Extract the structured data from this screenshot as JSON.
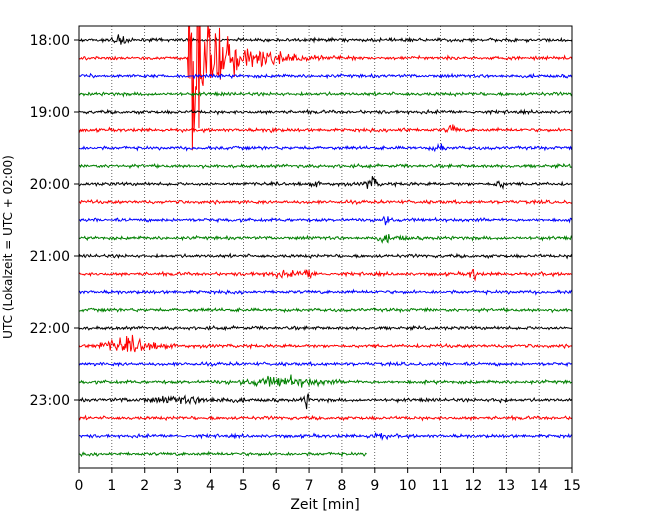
{
  "chart_data": {
    "type": "line",
    "title": "",
    "xlabel": "Zeit  [min]",
    "ylabel": "UTC (Lokalzeit = UTC + 02:00)",
    "xlim": [
      0,
      15
    ],
    "x_ticks": [
      "0",
      "1",
      "2",
      "3",
      "4",
      "5",
      "6",
      "7",
      "8",
      "9",
      "10",
      "11",
      "12",
      "13",
      "14",
      "15"
    ],
    "y_tick_labels": [
      "18:00",
      "19:00",
      "20:00",
      "21:00",
      "22:00",
      "23:00"
    ],
    "grid": "vertical dotted",
    "color_cycle": [
      "#000000",
      "#ff0000",
      "#0000ff",
      "#008000"
    ],
    "trace_interval_minutes": 15,
    "traces": [
      {
        "start": "18:00",
        "end_min": 15
      },
      {
        "start": "18:15",
        "end_min": 15
      },
      {
        "start": "18:30",
        "end_min": 15
      },
      {
        "start": "18:45",
        "end_min": 15
      },
      {
        "start": "19:00",
        "end_min": 15
      },
      {
        "start": "19:15",
        "end_min": 15
      },
      {
        "start": "19:30",
        "end_min": 15
      },
      {
        "start": "19:45",
        "end_min": 15
      },
      {
        "start": "20:00",
        "end_min": 15
      },
      {
        "start": "20:15",
        "end_min": 15
      },
      {
        "start": "20:30",
        "end_min": 15
      },
      {
        "start": "20:45",
        "end_min": 15
      },
      {
        "start": "21:00",
        "end_min": 15
      },
      {
        "start": "21:15",
        "end_min": 15
      },
      {
        "start": "21:30",
        "end_min": 15
      },
      {
        "start": "21:45",
        "end_min": 15
      },
      {
        "start": "22:00",
        "end_min": 15
      },
      {
        "start": "22:15",
        "end_min": 15
      },
      {
        "start": "22:30",
        "end_min": 15
      },
      {
        "start": "22:45",
        "end_min": 15
      },
      {
        "start": "23:00",
        "end_min": 15
      },
      {
        "start": "23:15",
        "end_min": 15
      },
      {
        "start": "23:30",
        "end_min": 15
      },
      {
        "start": "23:45",
        "end_min": 8.75
      }
    ],
    "events": [
      {
        "trace": 0,
        "x": 1.25,
        "amp": 0.9,
        "dur": 0.25
      },
      {
        "trace": 1,
        "x": 3.3,
        "amp": 15,
        "dur": 2.2,
        "type": "quake"
      },
      {
        "trace": 1,
        "x": 6.5,
        "amp": 0.3,
        "dur": 2.0
      },
      {
        "trace": 5,
        "x": 5.9,
        "amp": 0.4,
        "dur": 0.1
      },
      {
        "trace": 5,
        "x": 9.9,
        "amp": 0.5,
        "dur": 0.1
      },
      {
        "trace": 5,
        "x": 11.35,
        "amp": 0.8,
        "dur": 0.2
      },
      {
        "trace": 6,
        "x": 10.95,
        "amp": 0.7,
        "dur": 0.2
      },
      {
        "trace": 8,
        "x": 7.2,
        "amp": 0.3,
        "dur": 0.1
      },
      {
        "trace": 8,
        "x": 8.9,
        "amp": 1.0,
        "dur": 0.25
      },
      {
        "trace": 8,
        "x": 12.8,
        "amp": 0.5,
        "dur": 0.25
      },
      {
        "trace": 10,
        "x": 9.3,
        "amp": 0.6,
        "dur": 0.3
      },
      {
        "trace": 11,
        "x": 9.3,
        "amp": 0.5,
        "dur": 0.3
      },
      {
        "trace": 11,
        "x": 9.8,
        "amp": 0.4,
        "dur": 0.2
      },
      {
        "trace": 13,
        "x": 6.3,
        "amp": 0.3,
        "dur": 1.4
      },
      {
        "trace": 13,
        "x": 7.0,
        "amp": 0.6,
        "dur": 0.2
      },
      {
        "trace": 13,
        "x": 12.0,
        "amp": 1.2,
        "dur": 0.1
      },
      {
        "trace": 17,
        "x": 1.5,
        "amp": 1.1,
        "dur": 1.5
      },
      {
        "trace": 19,
        "x": 6.2,
        "amp": 0.7,
        "dur": 2.2
      },
      {
        "trace": 20,
        "x": 3.2,
        "amp": 0.4,
        "dur": 2.8
      },
      {
        "trace": 20,
        "x": 6.9,
        "amp": 1.2,
        "dur": 0.1
      },
      {
        "trace": 20,
        "x": 12.8,
        "amp": 0.3,
        "dur": 0.3
      },
      {
        "trace": 22,
        "x": 9.1,
        "amp": 0.4,
        "dur": 0.4
      }
    ]
  }
}
